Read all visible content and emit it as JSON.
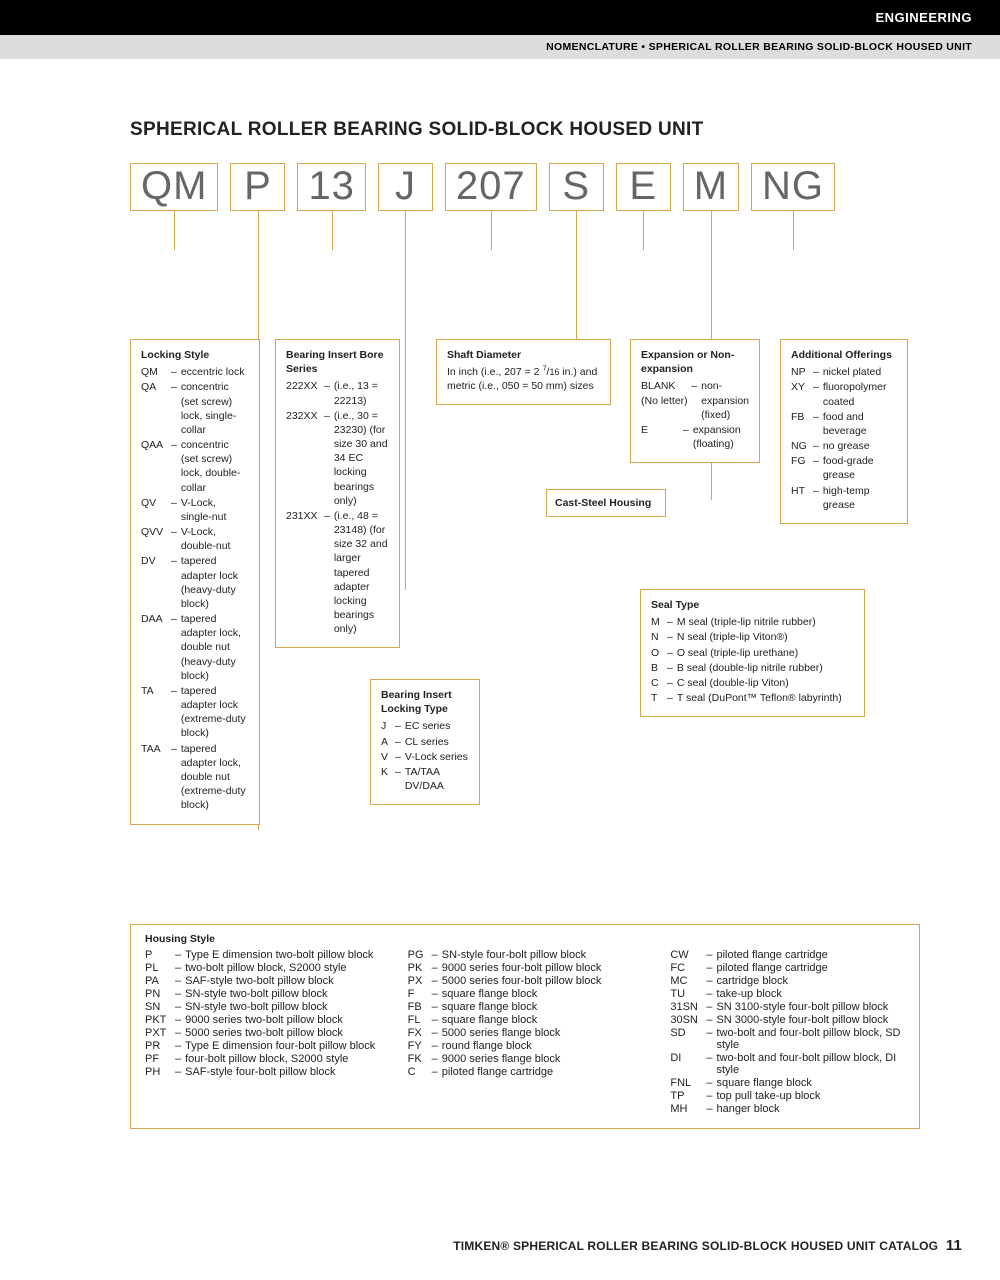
{
  "header": {
    "category": "ENGINEERING",
    "breadcrumb": "NOMENCLATURE • SPHERICAL ROLLER BEARING SOLID-BLOCK HOUSED UNIT"
  },
  "title": "SPHERICAL ROLLER BEARING SOLID-BLOCK HOUSED UNIT",
  "code": [
    "QM",
    "P",
    "13",
    "J",
    "207",
    "S",
    "E",
    "M",
    "NG"
  ],
  "colors": {
    "box_border": "#d4a84a",
    "code_text": "#666666",
    "black": "#000000",
    "gray_bar": "#dddddd"
  },
  "boxes": {
    "locking_style": {
      "heading": "Locking Style",
      "items": [
        {
          "c": "QM",
          "t": "eccentric lock"
        },
        {
          "c": "QA",
          "t": "concentric (set screw) lock, single-collar"
        },
        {
          "c": "QAA",
          "t": "concentric (set screw) lock, double-collar"
        },
        {
          "c": "QV",
          "t": "V-Lock, single-nut"
        },
        {
          "c": "QVV",
          "t": "V-Lock, double-nut"
        },
        {
          "c": "DV",
          "t": "tapered adapter lock (heavy-duty block)"
        },
        {
          "c": "DAA",
          "t": "tapered adapter lock, double nut (heavy-duty block)"
        },
        {
          "c": "TA",
          "t": "tapered adapter lock (extreme-duty block)"
        },
        {
          "c": "TAA",
          "t": "tapered adapter lock, double nut (extreme-duty block)"
        }
      ]
    },
    "bore_series": {
      "heading": "Bearing Insert Bore Series",
      "items": [
        {
          "c": "222XX",
          "t": "(i.e., 13 = 22213)"
        },
        {
          "c": "232XX",
          "t": "(i.e., 30 = 23230) (for size 30 and 34 EC locking bearings only)"
        },
        {
          "c": "231XX",
          "t": "(i.e., 48 = 23148) (for size 32 and larger tapered adapter locking bearings only)"
        }
      ]
    },
    "locking_type": {
      "heading": "Bearing Insert Locking Type",
      "items": [
        {
          "c": "J",
          "t": "EC series"
        },
        {
          "c": "A",
          "t": "CL series"
        },
        {
          "c": "V",
          "t": "V-Lock series"
        },
        {
          "c": "K",
          "t": "TA/TAA DV/DAA"
        }
      ]
    },
    "shaft_diameter": {
      "heading": "Shaft Diameter",
      "text": "In inch (i.e., 207 = 2 7/16 in.) and metric (i.e., 050 = 50 mm) sizes"
    },
    "cast_steel": {
      "heading": "Cast-Steel Housing"
    },
    "expansion": {
      "heading": "Expansion or Non-expansion",
      "items": [
        {
          "c": "BLANK (No letter)",
          "t": "non-expansion (fixed)"
        },
        {
          "c": "E",
          "t": "expansion (floating)"
        }
      ]
    },
    "seal_type": {
      "heading": "Seal Type",
      "items": [
        {
          "c": "M",
          "t": "M seal (triple-lip nitrile rubber)"
        },
        {
          "c": "N",
          "t": "N seal (triple-lip Viton®)"
        },
        {
          "c": "O",
          "t": "O seal (triple-lip urethane)"
        },
        {
          "c": "B",
          "t": "B seal (double-lip nitrile rubber)"
        },
        {
          "c": "C",
          "t": "C seal (double-lip Viton)"
        },
        {
          "c": "T",
          "t": "T seal (DuPont™ Teflon® labyrinth)"
        }
      ]
    },
    "additional": {
      "heading": "Additional Offerings",
      "items": [
        {
          "c": "NP",
          "t": "nickel plated"
        },
        {
          "c": "XY",
          "t": "fluoropolymer coated"
        },
        {
          "c": "FB",
          "t": "food and beverage"
        },
        {
          "c": "NG",
          "t": "no grease"
        },
        {
          "c": "FG",
          "t": "food-grade grease"
        },
        {
          "c": "HT",
          "t": "high-temp grease"
        }
      ]
    },
    "housing_style": {
      "heading": "Housing Style",
      "col1": [
        {
          "c": "P",
          "t": "Type E dimension two-bolt pillow block"
        },
        {
          "c": "PL",
          "t": "two-bolt pillow block, S2000 style"
        },
        {
          "c": "PA",
          "t": "SAF-style two-bolt pillow block"
        },
        {
          "c": "PN",
          "t": "SN-style two-bolt pillow block"
        },
        {
          "c": "SN",
          "t": "SN-style two-bolt pillow block"
        },
        {
          "c": "PKT",
          "t": "9000 series two-bolt pillow block"
        },
        {
          "c": "PXT",
          "t": "5000 series two-bolt pillow block"
        },
        {
          "c": "PR",
          "t": "Type E dimension four-bolt pillow block"
        },
        {
          "c": "PF",
          "t": "four-bolt pillow block, S2000 style"
        },
        {
          "c": "PH",
          "t": "SAF-style four-bolt pillow block"
        }
      ],
      "col2": [
        {
          "c": "PG",
          "t": "SN-style four-bolt pillow block"
        },
        {
          "c": "PK",
          "t": "9000 series four-bolt pillow block"
        },
        {
          "c": "PX",
          "t": "5000 series four-bolt pillow block"
        },
        {
          "c": "F",
          "t": "square flange block"
        },
        {
          "c": "FB",
          "t": "square flange block"
        },
        {
          "c": "FL",
          "t": "square flange block"
        },
        {
          "c": "FX",
          "t": "5000 series flange block"
        },
        {
          "c": "FY",
          "t": "round flange block"
        },
        {
          "c": "FK",
          "t": "9000 series flange block"
        },
        {
          "c": "C",
          "t": "piloted flange cartridge"
        }
      ],
      "col3": [
        {
          "c": "CW",
          "t": "piloted flange cartridge"
        },
        {
          "c": "FC",
          "t": "piloted flange cartridge"
        },
        {
          "c": "MC",
          "t": "cartridge block"
        },
        {
          "c": "TU",
          "t": "take-up block"
        },
        {
          "c": "31SN",
          "t": "SN 3100-style four-bolt pillow block"
        },
        {
          "c": "30SN",
          "t": "SN 3000-style four-bolt pillow block"
        },
        {
          "c": "SD",
          "t": "two-bolt and four-bolt pillow block, SD style"
        },
        {
          "c": "DI",
          "t": "two-bolt and four-bolt pillow block, DI style"
        },
        {
          "c": "FNL",
          "t": "square flange block"
        },
        {
          "c": "TP",
          "t": "top pull take-up block"
        },
        {
          "c": "MH",
          "t": "hanger block"
        }
      ]
    }
  },
  "footer": {
    "text": "TIMKEN® SPHERICAL ROLLER BEARING SOLID-BLOCK HOUSED UNIT CATALOG",
    "page": "11"
  }
}
